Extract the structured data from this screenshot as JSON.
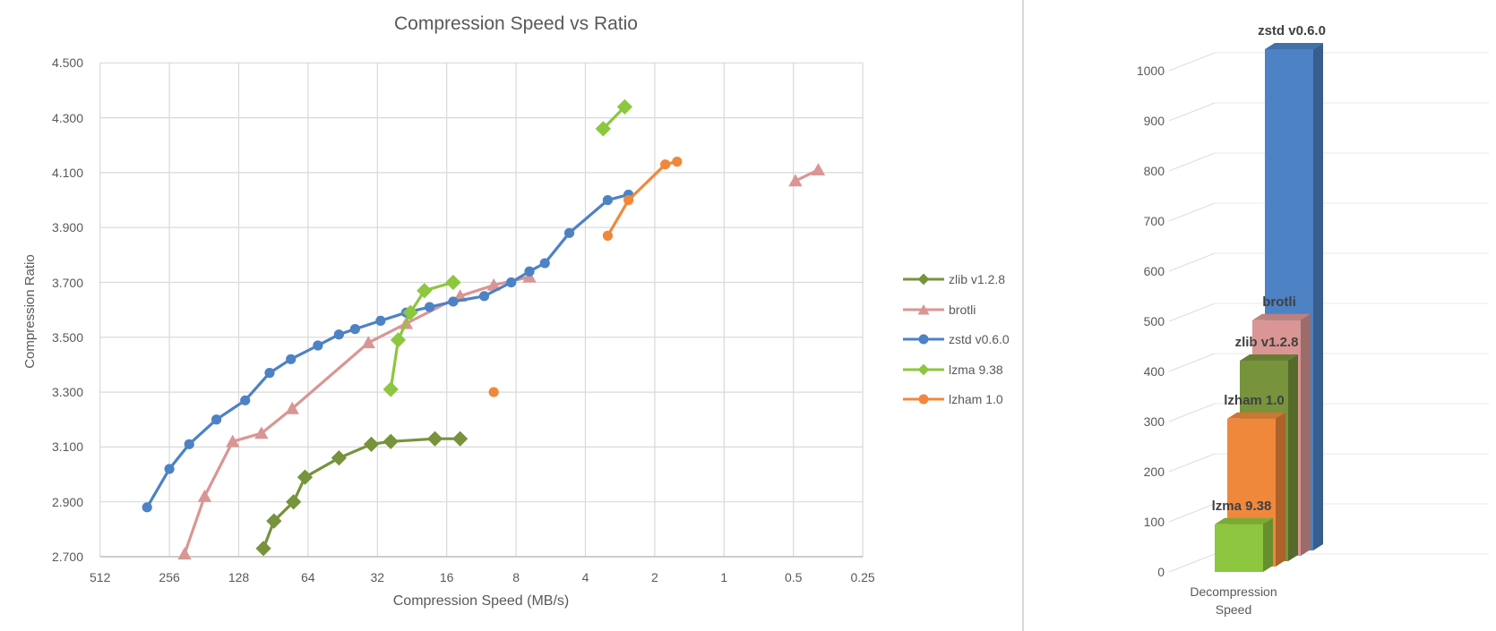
{
  "page": {
    "background": "#FFFFFF",
    "divider_color": "#D9D9D9"
  },
  "text_colors": {
    "title": "#595959",
    "axis_text": "#595959",
    "bar_label": "#404040",
    "gridline": "#D9D9D9",
    "axis_line": "#BFBFBF"
  },
  "chart_data": [
    {
      "type": "line",
      "title": "Compression Speed vs Ratio",
      "xlabel": "Compression Speed (MB/s)",
      "ylabel": "Compression Ratio",
      "x_scale": "log2_reversed",
      "x_ticks": [
        512,
        256,
        128,
        64,
        32,
        16,
        8,
        4,
        2,
        1,
        0.5,
        0.25
      ],
      "x_tick_labels": [
        "512",
        "256",
        "128",
        "64",
        "32",
        "16",
        "8",
        "4",
        "2",
        "1",
        "0.5",
        "0.25"
      ],
      "ylim": [
        2.7,
        4.5
      ],
      "y_ticks": [
        2.7,
        2.9,
        3.1,
        3.3,
        3.5,
        3.7,
        3.9,
        4.1,
        4.3,
        4.5
      ],
      "y_tick_labels": [
        "2.700",
        "2.900",
        "3.100",
        "3.300",
        "3.500",
        "3.700",
        "3.900",
        "4.100",
        "4.300",
        "4.500"
      ],
      "grid": true,
      "legend_position": "right",
      "series": [
        {
          "name": "zlib v1.2.8",
          "slug": "zlib",
          "color": "#77933C",
          "marker": "diamond",
          "segments": [
            [
              [
                100,
                2.73
              ],
              [
                90,
                2.83
              ],
              [
                74,
                2.9
              ],
              [
                66,
                2.99
              ],
              [
                47,
                3.06
              ],
              [
                34,
                3.11
              ],
              [
                28,
                3.12
              ],
              [
                18,
                3.13
              ],
              [
                14,
                3.13
              ]
            ]
          ]
        },
        {
          "name": "brotli",
          "slug": "brotli",
          "color": "#D99694",
          "marker": "triangle",
          "segments": [
            [
              [
                220,
                2.71
              ],
              [
                180,
                2.92
              ],
              [
                136,
                3.12
              ],
              [
                102,
                3.15
              ],
              [
                75,
                3.24
              ],
              [
                35,
                3.48
              ],
              [
                24,
                3.55
              ],
              [
                14,
                3.65
              ],
              [
                10,
                3.69
              ],
              [
                7,
                3.72
              ]
            ],
            [
              [
                0.49,
                4.07
              ],
              [
                0.39,
                4.11
              ]
            ]
          ]
        },
        {
          "name": "zstd v0.6.0",
          "slug": "zstd",
          "color": "#4D82C4",
          "marker": "circle",
          "segments": [
            [
              [
                320,
                2.88
              ],
              [
                256,
                3.02
              ],
              [
                210,
                3.11
              ],
              [
                160,
                3.2
              ],
              [
                120,
                3.27
              ],
              [
                94,
                3.37
              ],
              [
                76,
                3.42
              ],
              [
                58,
                3.47
              ],
              [
                47,
                3.51
              ],
              [
                40,
                3.53
              ],
              [
                31,
                3.56
              ],
              [
                24,
                3.59
              ],
              [
                19,
                3.61
              ],
              [
                15,
                3.63
              ],
              [
                11,
                3.65
              ],
              [
                8.4,
                3.7
              ],
              [
                7,
                3.74
              ],
              [
                6,
                3.77
              ],
              [
                4.7,
                3.88
              ],
              [
                3.2,
                4.0
              ],
              [
                2.6,
                4.02
              ]
            ]
          ]
        },
        {
          "name": "lzma 9.38",
          "slug": "lzma",
          "color": "#8DC63F",
          "marker": "diamond",
          "segments": [
            [
              [
                28,
                3.31
              ],
              [
                26,
                3.49
              ],
              [
                23,
                3.59
              ],
              [
                20,
                3.67
              ],
              [
                15,
                3.7
              ]
            ],
            [
              [
                3.35,
                4.26
              ],
              [
                2.7,
                4.34
              ]
            ]
          ]
        },
        {
          "name": "lzham 1.0",
          "slug": "lzham",
          "color": "#F0883C",
          "marker": "circle",
          "segments": [
            [
              [
                10,
                3.3
              ]
            ],
            [
              [
                3.2,
                3.87
              ],
              [
                2.6,
                4.0
              ],
              [
                1.8,
                4.13
              ],
              [
                1.6,
                4.14
              ]
            ]
          ]
        }
      ]
    },
    {
      "type": "bar",
      "style": "3d",
      "categories": [
        "Decompression Speed"
      ],
      "ylim": [
        0,
        1000
      ],
      "y_ticks": [
        0,
        100,
        200,
        300,
        400,
        500,
        600,
        700,
        800,
        900,
        1000
      ],
      "y_tick_labels": [
        "0",
        "100",
        "200",
        "300",
        "400",
        "500",
        "600",
        "700",
        "800",
        "900",
        "1000"
      ],
      "depth_order": "front-to-back",
      "series": [
        {
          "name": "lzma 9.38",
          "slug": "lzma",
          "color": "#8DC63F",
          "value": 95
        },
        {
          "name": "lzham 1.0",
          "slug": "lzham",
          "color": "#F0883C",
          "value": 295
        },
        {
          "name": "zlib v1.2.8",
          "slug": "zlib",
          "color": "#77933C",
          "value": 400
        },
        {
          "name": "brotli",
          "slug": "brotli",
          "color": "#D99694",
          "value": 470
        },
        {
          "name": "zstd v0.6.0",
          "slug": "zstd",
          "color": "#4D82C4",
          "value": 1000
        }
      ]
    }
  ]
}
